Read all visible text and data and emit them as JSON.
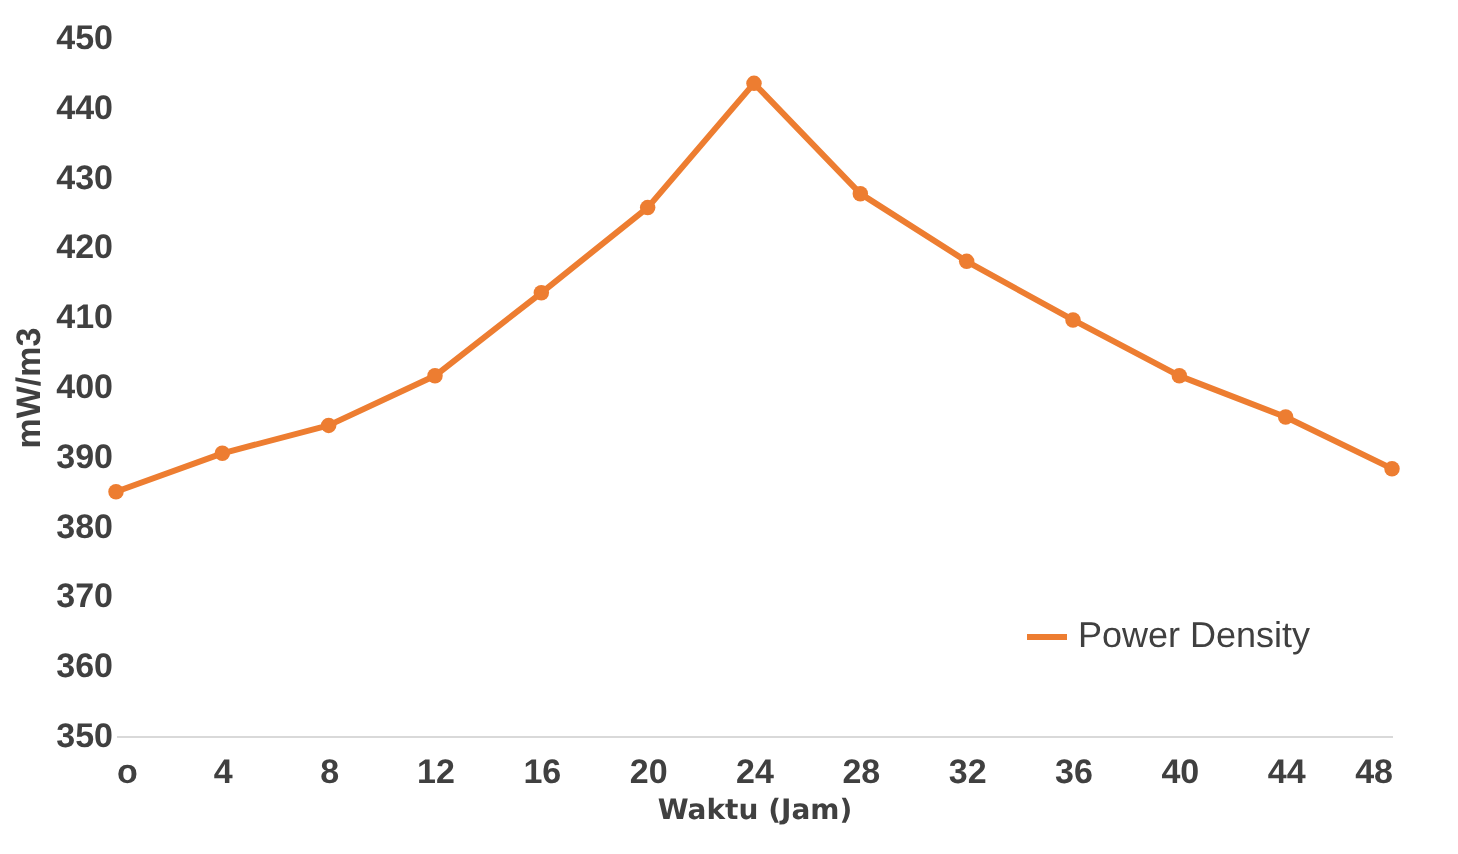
{
  "chart_data": {
    "type": "line",
    "xlabel": "Waktu (Jam)",
    "ylabel": "mW/m3",
    "x": [
      0,
      4,
      8,
      12,
      16,
      20,
      24,
      28,
      32,
      36,
      40,
      44,
      48
    ],
    "series": [
      {
        "name": "Power Density",
        "color": "#ed7d31",
        "values": [
          385,
          390.5,
          394.5,
          401.6,
          413.5,
          425.7,
          443.5,
          427.7,
          418,
          409.6,
          401.6,
          395.7,
          388.3
        ]
      }
    ],
    "xlim": [
      0,
      48
    ],
    "xticks": [
      {
        "value": 0,
        "label": "o"
      },
      4,
      8,
      12,
      16,
      20,
      24,
      28,
      32,
      36,
      40,
      44,
      48
    ],
    "ylim": [
      350,
      450
    ],
    "yticks": [
      350,
      360,
      370,
      380,
      390,
      400,
      410,
      420,
      430,
      440,
      450
    ],
    "grid": false,
    "legend": "bottom right",
    "marker": "circle",
    "line_style": "solid"
  }
}
